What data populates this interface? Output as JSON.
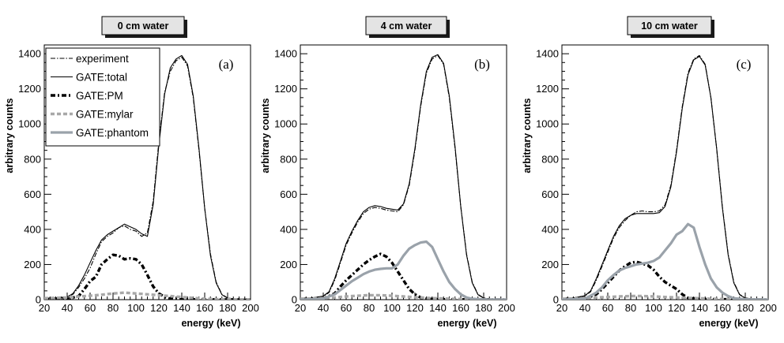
{
  "styles": {
    "experiment": {
      "color": "#000000",
      "width": 1.1,
      "dash": "6,2,1.5,2"
    },
    "total": {
      "color": "#000000",
      "width": 1.1,
      "dash": ""
    },
    "pm": {
      "color": "#000000",
      "width": 3.4,
      "dash": "6,3,2,3"
    },
    "mylar": {
      "color": "#a8a8a8",
      "width": 3.4,
      "dash": "5,3"
    },
    "phantom": {
      "color": "#9aa2aa",
      "width": 3.2,
      "dash": ""
    }
  },
  "legend": [
    {
      "key": "experiment",
      "label": "experiment"
    },
    {
      "key": "total",
      "label": "GATE:total"
    },
    {
      "key": "pm",
      "label": "GATE:PM"
    },
    {
      "key": "mylar",
      "label": "GATE:mylar"
    },
    {
      "key": "phantom",
      "label": "GATE:phantom"
    }
  ],
  "chart_data": [
    {
      "type": "line",
      "title": "0 cm water",
      "panel_label": "(a)",
      "xlabel": "energy (keV)",
      "ylabel": "arbitrary counts",
      "xlim": [
        20,
        200
      ],
      "ylim": [
        0,
        1450
      ],
      "xticks": [
        20,
        40,
        60,
        80,
        100,
        120,
        140,
        160,
        180,
        200
      ],
      "yticks": [
        0,
        200,
        400,
        600,
        800,
        1000,
        1200,
        1400
      ],
      "series": [
        {
          "name": "experiment",
          "style": "experiment",
          "x": [
            20,
            30,
            40,
            45,
            50,
            55,
            60,
            65,
            70,
            75,
            80,
            85,
            90,
            95,
            100,
            105,
            110,
            115,
            120,
            125,
            130,
            135,
            140,
            145,
            150,
            155,
            160,
            165,
            170,
            175,
            180,
            185,
            190,
            200
          ],
          "y": [
            8,
            10,
            15,
            30,
            70,
            120,
            180,
            260,
            330,
            360,
            380,
            410,
            420,
            400,
            390,
            360,
            380,
            560,
            900,
            1180,
            1300,
            1360,
            1380,
            1330,
            1150,
            850,
            520,
            260,
            100,
            30,
            10,
            5,
            3,
            2
          ]
        },
        {
          "name": "GATE:total",
          "style": "total",
          "x": [
            20,
            30,
            40,
            45,
            50,
            55,
            60,
            65,
            70,
            75,
            80,
            85,
            90,
            95,
            100,
            105,
            110,
            115,
            120,
            125,
            130,
            135,
            140,
            145,
            150,
            155,
            160,
            165,
            170,
            175,
            180,
            185,
            190,
            200
          ],
          "y": [
            8,
            10,
            15,
            35,
            80,
            140,
            210,
            280,
            340,
            370,
            390,
            410,
            430,
            415,
            400,
            375,
            360,
            540,
            880,
            1170,
            1320,
            1370,
            1390,
            1340,
            1160,
            860,
            520,
            250,
            95,
            28,
            8,
            4,
            3,
            2
          ]
        },
        {
          "name": "GATE:PM",
          "style": "pm",
          "x": [
            20,
            40,
            50,
            55,
            60,
            65,
            70,
            75,
            80,
            85,
            90,
            95,
            100,
            105,
            110,
            115,
            120,
            125,
            130,
            140,
            200
          ],
          "y": [
            0,
            3,
            20,
            60,
            105,
            130,
            200,
            230,
            255,
            250,
            230,
            235,
            230,
            200,
            140,
            75,
            35,
            15,
            5,
            2,
            0
          ]
        },
        {
          "name": "GATE:mylar",
          "style": "mylar",
          "x": [
            20,
            40,
            50,
            60,
            70,
            80,
            90,
            100,
            110,
            120,
            130,
            140,
            150,
            160,
            170,
            180,
            200
          ],
          "y": [
            8,
            12,
            18,
            22,
            28,
            35,
            40,
            35,
            30,
            25,
            20,
            15,
            10,
            5,
            3,
            2,
            1
          ]
        }
      ]
    },
    {
      "type": "line",
      "title": "4 cm water",
      "panel_label": "(b)",
      "xlabel": "energy (keV)",
      "ylabel": "arbitrary counts",
      "xlim": [
        20,
        200
      ],
      "ylim": [
        0,
        1450
      ],
      "xticks": [
        20,
        40,
        60,
        80,
        100,
        120,
        140,
        160,
        180,
        200
      ],
      "yticks": [
        0,
        200,
        400,
        600,
        800,
        1000,
        1200,
        1400
      ],
      "series": [
        {
          "name": "experiment",
          "style": "experiment",
          "x": [
            20,
            30,
            40,
            45,
            50,
            55,
            60,
            65,
            70,
            75,
            80,
            85,
            90,
            95,
            100,
            105,
            110,
            115,
            120,
            125,
            130,
            135,
            140,
            145,
            150,
            155,
            160,
            165,
            170,
            175,
            180,
            185,
            190,
            200
          ],
          "y": [
            8,
            10,
            18,
            40,
            110,
            210,
            310,
            380,
            440,
            490,
            515,
            525,
            520,
            510,
            505,
            500,
            540,
            650,
            850,
            1100,
            1290,
            1370,
            1390,
            1340,
            1150,
            860,
            530,
            260,
            100,
            30,
            10,
            5,
            3,
            2
          ]
        },
        {
          "name": "GATE:total",
          "style": "total",
          "x": [
            20,
            30,
            40,
            45,
            50,
            55,
            60,
            65,
            70,
            75,
            80,
            85,
            90,
            95,
            100,
            105,
            110,
            115,
            120,
            125,
            130,
            135,
            140,
            145,
            150,
            155,
            160,
            165,
            170,
            175,
            180,
            185,
            190,
            200
          ],
          "y": [
            8,
            10,
            20,
            45,
            120,
            220,
            320,
            390,
            450,
            500,
            525,
            535,
            530,
            520,
            515,
            510,
            545,
            660,
            860,
            1110,
            1300,
            1380,
            1395,
            1345,
            1160,
            870,
            530,
            255,
            95,
            28,
            8,
            4,
            3,
            2
          ]
        },
        {
          "name": "GATE:PM",
          "style": "pm",
          "x": [
            20,
            40,
            50,
            55,
            60,
            65,
            70,
            75,
            80,
            85,
            90,
            95,
            100,
            105,
            110,
            115,
            120,
            125,
            130,
            140,
            200
          ],
          "y": [
            0,
            5,
            35,
            75,
            110,
            140,
            170,
            200,
            225,
            245,
            260,
            245,
            210,
            160,
            110,
            60,
            30,
            12,
            5,
            2,
            0
          ]
        },
        {
          "name": "GATE:mylar",
          "style": "mylar",
          "x": [
            20,
            40,
            50,
            60,
            70,
            80,
            90,
            100,
            110,
            120,
            130,
            140,
            150,
            160,
            170,
            180,
            200
          ],
          "y": [
            5,
            8,
            12,
            18,
            22,
            25,
            25,
            22,
            18,
            14,
            10,
            7,
            5,
            3,
            2,
            1,
            0
          ]
        },
        {
          "name": "GATE:phantom",
          "style": "phantom",
          "x": [
            20,
            40,
            50,
            55,
            60,
            65,
            70,
            75,
            80,
            85,
            90,
            95,
            100,
            105,
            110,
            115,
            120,
            125,
            130,
            135,
            140,
            145,
            150,
            155,
            160,
            165,
            170,
            180,
            200
          ],
          "y": [
            0,
            5,
            30,
            55,
            80,
            105,
            125,
            145,
            160,
            170,
            175,
            178,
            178,
            200,
            250,
            290,
            310,
            325,
            330,
            300,
            230,
            160,
            100,
            60,
            30,
            12,
            5,
            1,
            0
          ]
        }
      ]
    },
    {
      "type": "line",
      "title": "10 cm water",
      "panel_label": "(c)",
      "xlabel": "energy (keV)",
      "ylabel": "arbitrary counts",
      "xlim": [
        20,
        200
      ],
      "ylim": [
        0,
        1450
      ],
      "xticks": [
        20,
        40,
        60,
        80,
        100,
        120,
        140,
        160,
        180,
        200
      ],
      "yticks": [
        0,
        200,
        400,
        600,
        800,
        1000,
        1200,
        1400
      ],
      "series": [
        {
          "name": "experiment",
          "style": "experiment",
          "x": [
            20,
            30,
            40,
            45,
            50,
            55,
            60,
            65,
            70,
            75,
            80,
            85,
            90,
            95,
            100,
            105,
            110,
            115,
            120,
            125,
            130,
            135,
            140,
            145,
            150,
            155,
            160,
            165,
            170,
            175,
            180,
            185,
            190,
            200
          ],
          "y": [
            8,
            10,
            20,
            45,
            110,
            190,
            270,
            350,
            410,
            450,
            480,
            500,
            505,
            500,
            500,
            505,
            540,
            650,
            850,
            1100,
            1290,
            1370,
            1390,
            1340,
            1150,
            860,
            530,
            260,
            100,
            30,
            10,
            5,
            3,
            2
          ]
        },
        {
          "name": "GATE:total",
          "style": "total",
          "x": [
            20,
            30,
            40,
            45,
            50,
            55,
            60,
            65,
            70,
            75,
            80,
            85,
            90,
            95,
            100,
            105,
            110,
            115,
            120,
            125,
            130,
            135,
            140,
            145,
            150,
            155,
            160,
            165,
            170,
            175,
            180,
            185,
            190,
            200
          ],
          "y": [
            8,
            10,
            22,
            50,
            120,
            200,
            280,
            360,
            420,
            460,
            480,
            490,
            490,
            490,
            490,
            495,
            530,
            640,
            840,
            1090,
            1280,
            1365,
            1385,
            1335,
            1150,
            860,
            525,
            255,
            95,
            28,
            8,
            4,
            3,
            2
          ]
        },
        {
          "name": "GATE:PM",
          "style": "pm",
          "x": [
            20,
            40,
            50,
            55,
            60,
            65,
            70,
            75,
            80,
            85,
            90,
            95,
            100,
            105,
            110,
            115,
            120,
            125,
            130,
            140,
            200
          ],
          "y": [
            0,
            5,
            30,
            60,
            95,
            130,
            165,
            190,
            210,
            215,
            205,
            195,
            170,
            130,
            100,
            80,
            60,
            30,
            10,
            3,
            0
          ]
        },
        {
          "name": "GATE:mylar",
          "style": "mylar",
          "x": [
            20,
            40,
            50,
            60,
            70,
            80,
            90,
            100,
            110,
            120,
            130,
            140,
            150,
            160,
            170,
            180,
            200
          ],
          "y": [
            5,
            8,
            12,
            15,
            18,
            20,
            20,
            18,
            15,
            12,
            10,
            8,
            5,
            3,
            2,
            1,
            0
          ]
        },
        {
          "name": "GATE:phantom",
          "style": "phantom",
          "x": [
            20,
            40,
            50,
            55,
            60,
            65,
            70,
            75,
            80,
            85,
            90,
            95,
            100,
            105,
            110,
            115,
            120,
            125,
            130,
            135,
            140,
            145,
            150,
            155,
            160,
            165,
            170,
            180,
            200
          ],
          "y": [
            0,
            5,
            40,
            70,
            110,
            140,
            165,
            180,
            190,
            200,
            205,
            210,
            220,
            240,
            280,
            320,
            370,
            390,
            430,
            410,
            300,
            200,
            120,
            70,
            40,
            20,
            8,
            2,
            0
          ]
        }
      ]
    }
  ]
}
